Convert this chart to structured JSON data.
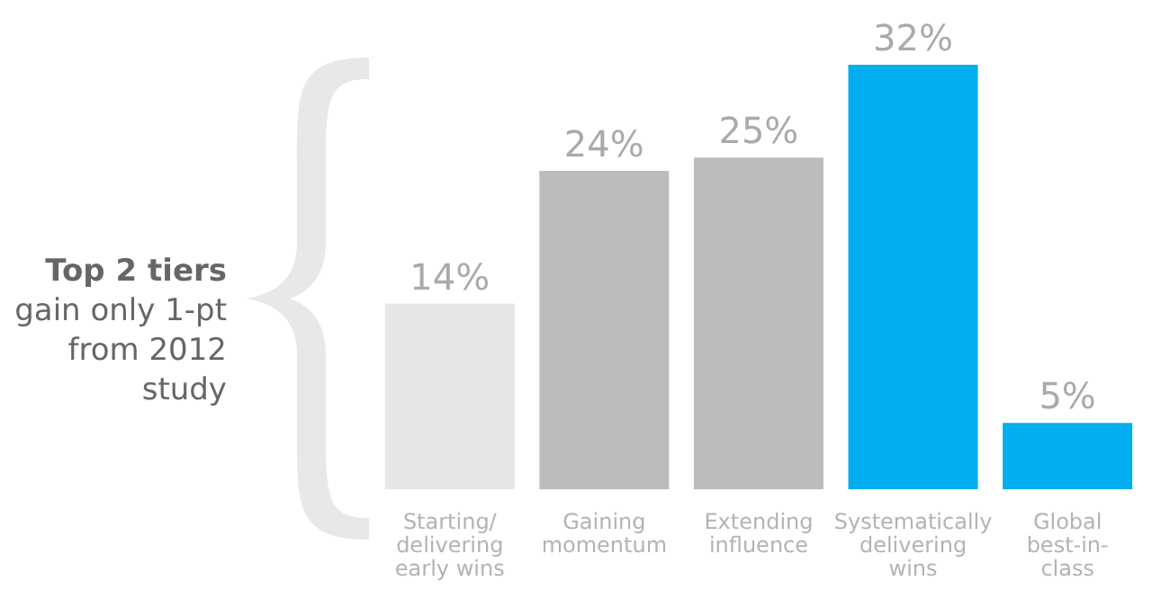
{
  "chart_data": {
    "type": "bar",
    "categories": [
      "Starting/ delivering early wins",
      "Gaining momentum",
      "Extending influence",
      "Systematically delivering wins",
      "Global best-in-class"
    ],
    "values": [
      14,
      24,
      25,
      32,
      5
    ],
    "colors": [
      "#e6e6e6",
      "#bcbcbc",
      "#bcbcbc",
      "#00aeef",
      "#00aeef"
    ],
    "value_labels": [
      "14%",
      "24%",
      "25%",
      "32%",
      "5%"
    ],
    "annotations": [
      "Top 2 tiers",
      "gain only 1-pt from 2012 study"
    ]
  }
}
